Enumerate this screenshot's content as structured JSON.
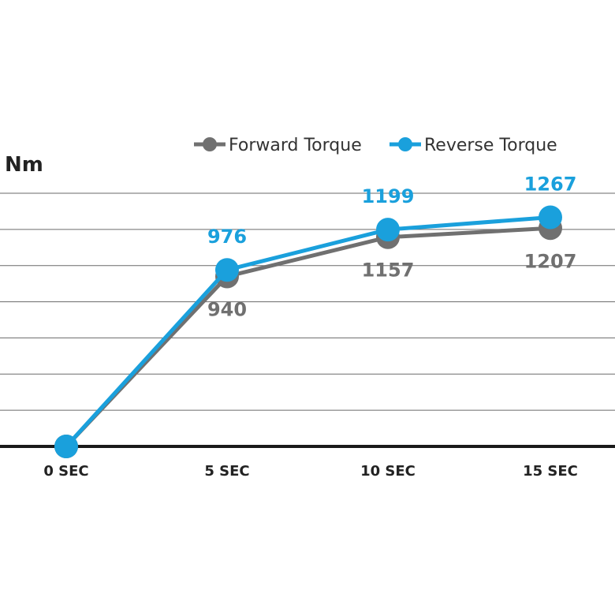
{
  "chart_data": {
    "type": "line",
    "ylabel": "Nm",
    "categories": [
      "0 SEC",
      "5 SEC",
      "10 SEC",
      "15 SEC"
    ],
    "ylim": [
      0,
      1400
    ],
    "grid": true,
    "legend_position": "top-right",
    "series": [
      {
        "name": "Forward Torque",
        "color": "#707070",
        "values": [
          0,
          940,
          1157,
          1207
        ],
        "labels": [
          "",
          "940",
          "1157",
          "1207"
        ],
        "label_position": "below"
      },
      {
        "name": "Reverse Torque",
        "color": "#1aa0dc",
        "values": [
          0,
          976,
          1199,
          1267
        ],
        "labels": [
          "",
          "976",
          "1199",
          "1267"
        ],
        "label_position": "above"
      }
    ]
  }
}
